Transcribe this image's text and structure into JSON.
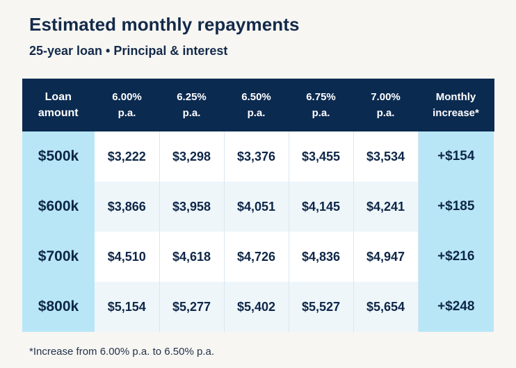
{
  "header": {
    "title": "Estimated monthly repayments",
    "subtitle": "25-year loan • Principal & interest"
  },
  "table": {
    "columns": [
      [
        "Loan",
        "amount"
      ],
      [
        "6.00%",
        "p.a."
      ],
      [
        "6.25%",
        "p.a."
      ],
      [
        "6.50%",
        "p.a."
      ],
      [
        "6.75%",
        "p.a."
      ],
      [
        "7.00%",
        "p.a."
      ],
      [
        "Monthly",
        "increase*"
      ]
    ],
    "rows": [
      [
        "$500k",
        "$3,222",
        "$3,298",
        "$3,376",
        "$3,455",
        "$3,534",
        "+$154"
      ],
      [
        "$600k",
        "$3,866",
        "$3,958",
        "$4,051",
        "$4,145",
        "$4,241",
        "+$185"
      ],
      [
        "$700k",
        "$4,510",
        "$4,618",
        "$4,726",
        "$4,836",
        "$4,947",
        "+$216"
      ],
      [
        "$800k",
        "$5,154",
        "$5,277",
        "$5,402",
        "$5,527",
        "$5,654",
        "+$248"
      ]
    ]
  },
  "footnote": "*Increase from 6.00% p.a. to 6.50% p.a.",
  "colors": {
    "header_bg": "#0b2a50",
    "highlight_bg": "#b8e6f7",
    "text": "#132a4a",
    "page_bg": "#f7f6f2"
  }
}
